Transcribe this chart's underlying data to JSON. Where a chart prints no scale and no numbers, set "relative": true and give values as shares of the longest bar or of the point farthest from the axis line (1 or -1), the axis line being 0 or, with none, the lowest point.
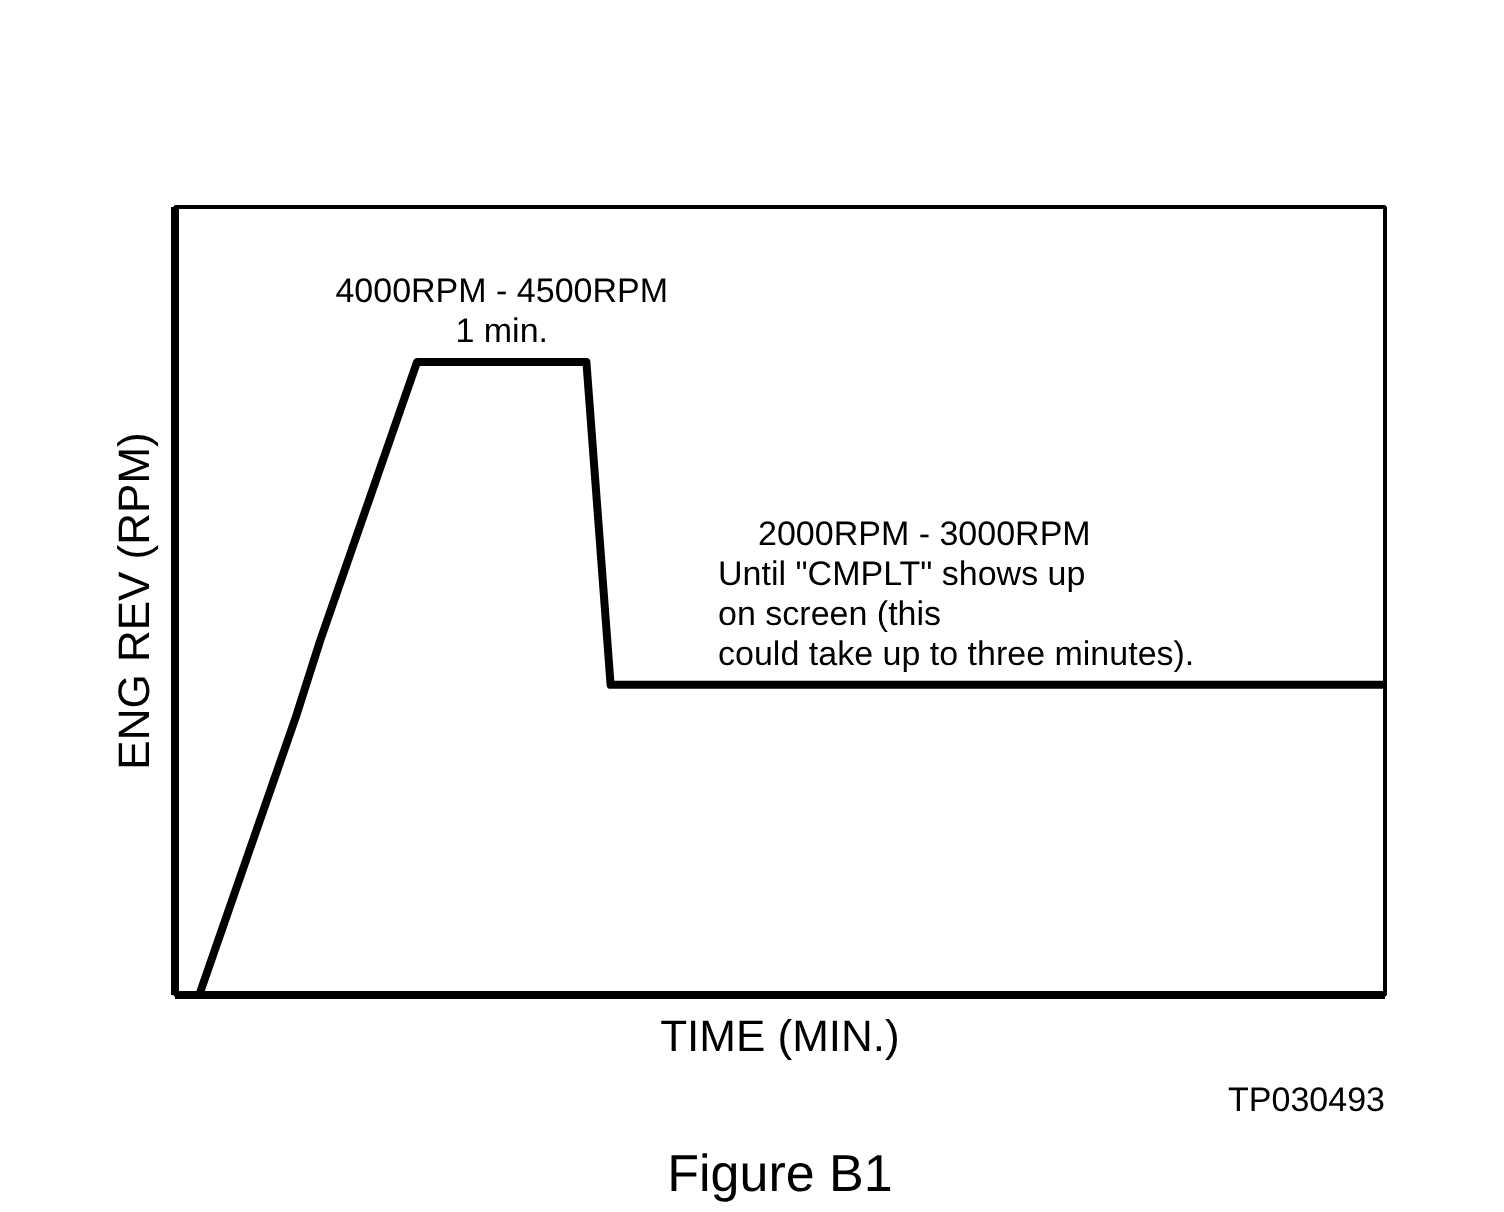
{
  "chart_data": {
    "type": "line",
    "relative": true,
    "title": "Figure B1",
    "xlabel": "TIME (MIN.)",
    "ylabel": "ENG REV (RPM)",
    "categories": [
      null,
      null,
      null,
      null,
      null,
      null,
      null,
      null,
      null,
      null,
      null,
      null,
      null,
      null,
      null,
      null,
      null,
      null,
      null,
      null,
      null,
      null,
      null,
      null,
      null,
      null,
      null,
      null,
      null,
      null,
      null,
      null,
      null,
      null,
      null,
      null,
      null,
      null,
      null,
      null,
      null,
      null,
      null,
      null,
      null,
      null,
      null,
      null,
      null,
      null,
      null
    ],
    "series": [
      {
        "color": "#000000",
        "values": [
          null,
          0,
          0.11,
          0.22,
          0.33,
          0.44,
          0.56,
          0.67,
          0.78,
          0.89,
          1,
          1,
          1,
          1,
          1,
          1,
          1,
          1,
          0.49,
          0.49,
          0.49,
          0.49,
          0.49,
          0.49,
          0.49,
          0.49,
          0.49,
          0.49,
          0.49,
          0.49,
          0.49,
          0.49,
          0.49,
          0.49,
          0.49,
          0.49,
          0.49,
          0.49,
          0.49,
          0.49,
          0.49,
          0.49,
          0.49,
          0.49,
          0.49,
          0.49,
          0.49,
          0.49,
          0.49,
          0.49,
          0.49
        ]
      }
    ],
    "annotations": [
      "4000RPM - 4500RPM\n1 min.",
      "2000RPM - 3000RPM\nUntil \"CMPLT\" shows up\non screen (this\ncould take up to three minutes).",
      "TP030493"
    ],
    "grid": false,
    "marker": "none",
    "line_style": "solid"
  }
}
